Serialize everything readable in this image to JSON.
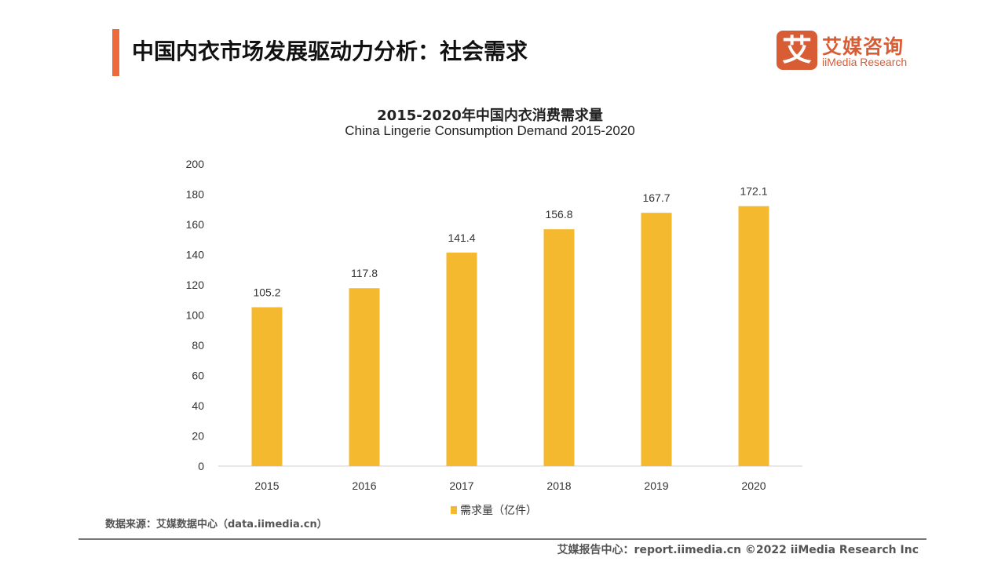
{
  "header": {
    "title": "中国内衣市场发展驱动力分析：社会需求",
    "accent_color": "#ee6a3a"
  },
  "logo": {
    "mark": "艾",
    "name_cn": "艾媒咨询",
    "name_en": "iiMedia Research",
    "color": "#d85c34"
  },
  "chart_data": {
    "type": "bar",
    "title": "2015-2020年中国内衣消费需求量",
    "subtitle": "China Lingerie Consumption Demand 2015-2020",
    "categories": [
      "2015",
      "2016",
      "2017",
      "2018",
      "2019",
      "2020"
    ],
    "series": [
      {
        "name": "需求量（亿件）",
        "values": [
          105.2,
          117.8,
          141.4,
          156.8,
          167.7,
          172.1
        ],
        "color": "#f4b92e"
      }
    ],
    "value_labels": [
      "105.2",
      "117.8",
      "141.4",
      "156.8",
      "167.7",
      "172.1"
    ],
    "yticks": [
      "0",
      "20",
      "40",
      "60",
      "80",
      "100",
      "120",
      "140",
      "160",
      "180",
      "200"
    ],
    "ylim": [
      0,
      200
    ],
    "grid": false,
    "legend_position": "bottom"
  },
  "footer": {
    "source": "数据来源：艾媒数据中心（data.iimedia.cn）",
    "copyright": "艾媒报告中心：report.iimedia.cn   ©2022  iiMedia Research  Inc"
  }
}
